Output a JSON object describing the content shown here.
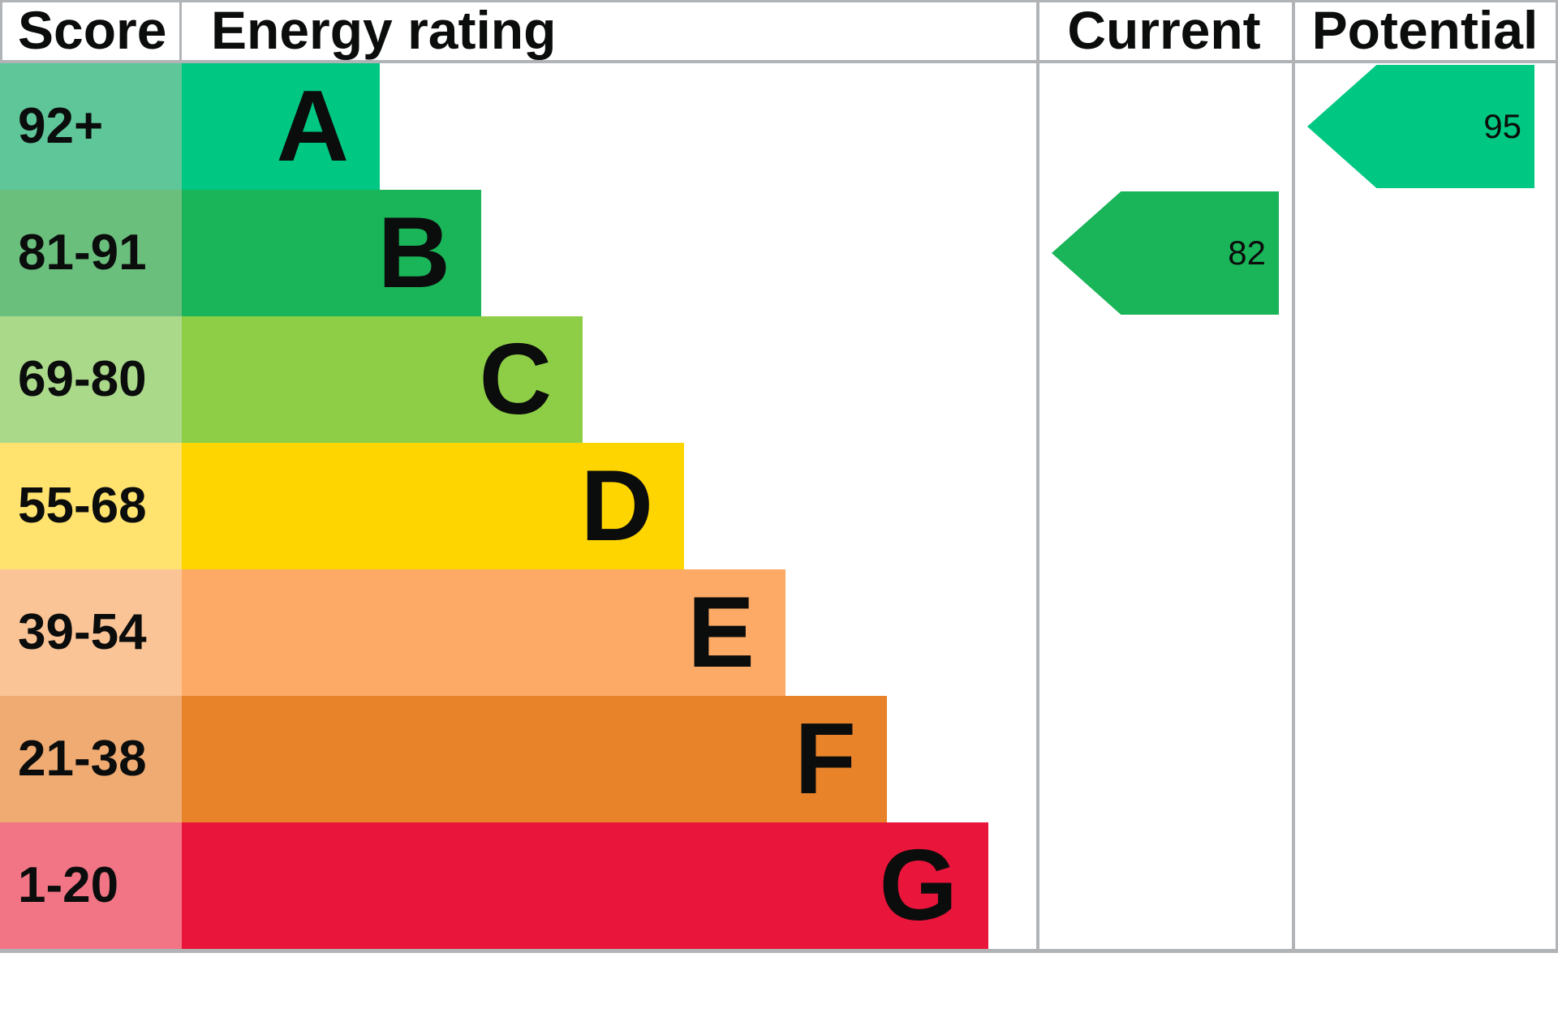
{
  "table": {
    "headers": {
      "score": "Score",
      "rating": "Energy rating",
      "current": "Current",
      "potential": "Potential"
    },
    "bands": [
      {
        "score": "92+",
        "letter": "A",
        "bar_color": "#00c781",
        "score_color": "#5fc69a"
      },
      {
        "score": "81-91",
        "letter": "B",
        "bar_color": "#1ab459",
        "score_color": "#6abf7d"
      },
      {
        "score": "69-80",
        "letter": "C",
        "bar_color": "#8dce46",
        "score_color": "#aad98a"
      },
      {
        "score": "55-68",
        "letter": "D",
        "bar_color": "#ffd500",
        "score_color": "#ffe36e"
      },
      {
        "score": "39-54",
        "letter": "E",
        "bar_color": "#fcaa65",
        "score_color": "#fac496"
      },
      {
        "score": "21-38",
        "letter": "F",
        "bar_color": "#e8832a",
        "score_color": "#f0ab72"
      },
      {
        "score": "1-20",
        "letter": "G",
        "bar_color": "#e9153b",
        "score_color": "#f27586"
      }
    ],
    "current": {
      "value": "82",
      "band": "B",
      "band_index": 1,
      "color": "#1ab459"
    },
    "potential": {
      "value": "95",
      "band": "A",
      "band_index": 0,
      "color": "#00c781"
    }
  },
  "chart_data": {
    "type": "bar",
    "title": "Energy rating",
    "categories": [
      "A",
      "B",
      "C",
      "D",
      "E",
      "F",
      "G"
    ],
    "score_ranges": [
      "92+",
      "81-91",
      "69-80",
      "55-68",
      "39-54",
      "21-38",
      "1-20"
    ],
    "band_colors": [
      "#00c781",
      "#1ab459",
      "#8dce46",
      "#ffd500",
      "#fcaa65",
      "#e8832a",
      "#e9153b"
    ],
    "bar_relative_widths": [
      1,
      1.51,
      2.02,
      2.54,
      3.05,
      3.56,
      4.07
    ],
    "columns": [
      "Score",
      "Energy rating",
      "Current",
      "Potential"
    ],
    "current_rating": 82,
    "current_band": "B",
    "potential_rating": 95,
    "potential_band": "A",
    "orientation": "horizontal",
    "grid": false,
    "legend": "none"
  }
}
